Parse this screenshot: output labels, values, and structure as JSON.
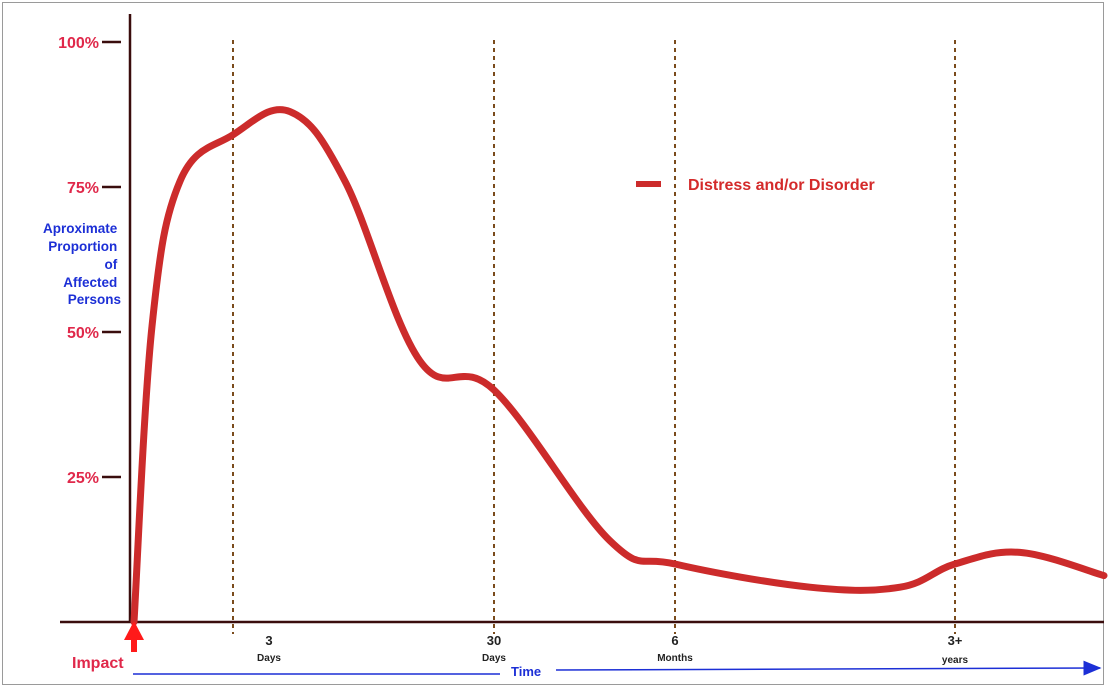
{
  "chart_data": {
    "type": "line",
    "xlabel": "Time",
    "ylabel": [
      "Aproximate",
      "Proportion",
      "of",
      "Affected",
      "Persons"
    ],
    "yticks": [
      {
        "value": 100,
        "label": "100%"
      },
      {
        "value": 75,
        "label": "75%"
      },
      {
        "value": 50,
        "label": "50%"
      },
      {
        "value": 25,
        "label": "25%"
      }
    ],
    "ylim": [
      0,
      100
    ],
    "xticks": [
      {
        "key": "3d",
        "num": "3",
        "unit": "Days"
      },
      {
        "key": "30d",
        "num": "30",
        "unit": "Days"
      },
      {
        "key": "6m",
        "num": "6",
        "unit": "Months"
      },
      {
        "key": "3y",
        "num": "3+",
        "unit": "years"
      }
    ],
    "x_scale": "ordinal (non-linear time)",
    "impact_label": "Impact",
    "legend": {
      "label": "Distress and/or Disorder",
      "position": "top-right"
    },
    "series": [
      {
        "name": "Distress and/or Disorder",
        "color": "#cc2b2b",
        "points": [
          {
            "x": "Impact",
            "y": 0
          },
          {
            "x": "~1 day",
            "y": 51
          },
          {
            "x": "~2 days",
            "y": 76
          },
          {
            "x": "3 days",
            "y": 84
          },
          {
            "x": "~1 week",
            "y": 88
          },
          {
            "x": "~2 weeks",
            "y": 76
          },
          {
            "x": "~3 weeks",
            "y": 45
          },
          {
            "x": "30 days",
            "y": 40
          },
          {
            "x": "~3 months",
            "y": 14
          },
          {
            "x": "6 months",
            "y": 10
          },
          {
            "x": "~1.5 years",
            "y": 6
          },
          {
            "x": "~2.5 years",
            "y": 6
          },
          {
            "x": "3+ years",
            "y": 10
          },
          {
            "x": "~4 years",
            "y": 12
          },
          {
            "x": "beyond",
            "y": 8
          }
        ]
      }
    ],
    "grid": false,
    "vertical_markers": [
      "3 days",
      "30 days",
      "6 months",
      "3+ years"
    ]
  }
}
